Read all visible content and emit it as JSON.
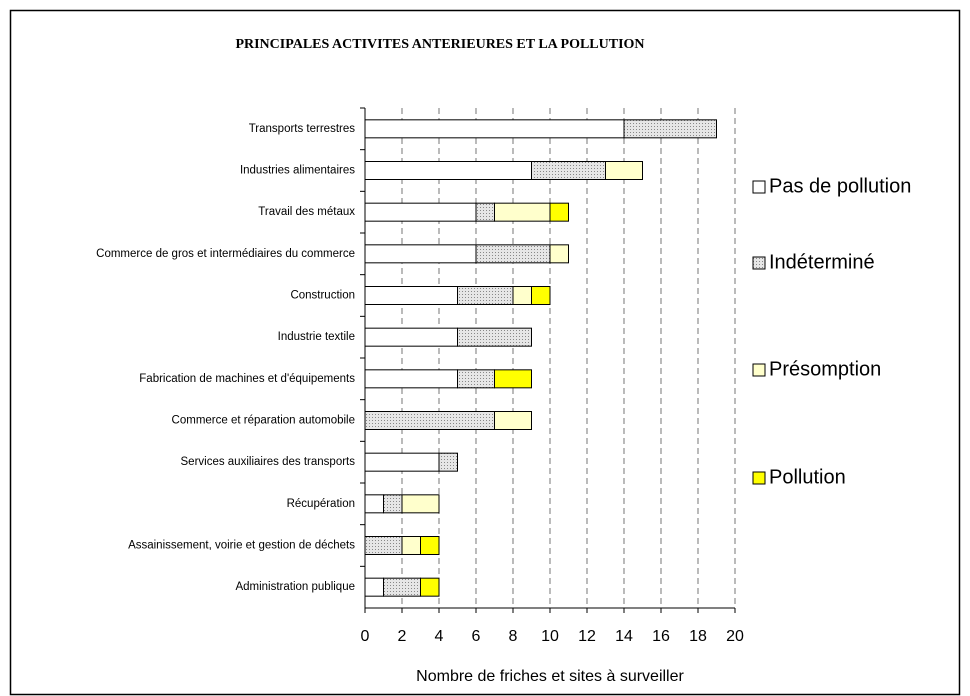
{
  "chart_data": {
    "type": "bar",
    "orientation": "horizontal",
    "stacked": true,
    "title": "PRINCIPALES ACTIVITES ANTERIEURES ET LA POLLUTION",
    "x_label": "Nombre de friches et sites à surveiller",
    "categories": [
      "Transports terrestres",
      "Industries alimentaires",
      "Travail des métaux",
      "Commerce de gros et intermédiaires du commerce",
      "Construction",
      "Industrie textile",
      "Fabrication de machines et d'équipements",
      "Commerce et réparation automobile",
      "Services auxiliaires des transports",
      "Récupération",
      "Assainissement, voirie et gestion de déchets",
      "Administration publique"
    ],
    "series": [
      {
        "name": "Pas de pollution",
        "color": "#ffffff",
        "values": [
          14,
          9,
          6,
          6,
          5,
          5,
          5,
          0,
          4,
          1,
          0,
          1
        ]
      },
      {
        "name": "Indéterminé",
        "color": "#d4d4d4",
        "values": [
          5,
          4,
          1,
          4,
          3,
          4,
          2,
          7,
          1,
          1,
          2,
          2
        ]
      },
      {
        "name": "Présomption",
        "color": "#ffffcc",
        "values": [
          0,
          2,
          3,
          1,
          1,
          0,
          0,
          2,
          0,
          2,
          1,
          0
        ]
      },
      {
        "name": "Pollution",
        "color": "#ffff00",
        "values": [
          0,
          0,
          1,
          0,
          1,
          0,
          2,
          0,
          0,
          0,
          1,
          1
        ]
      }
    ],
    "xlim": [
      0,
      20
    ],
    "xticks": [
      0,
      2,
      4,
      6,
      8,
      10,
      12,
      14,
      16,
      18,
      20
    ],
    "grid": true,
    "legend": "right"
  }
}
